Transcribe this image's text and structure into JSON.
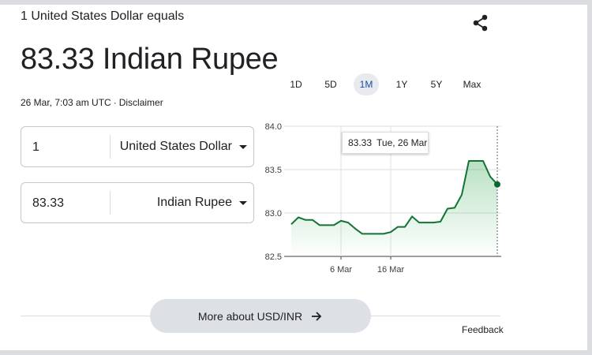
{
  "header": {
    "base_line": "1 United States Dollar equals",
    "share_icon": "share-icon"
  },
  "rate": {
    "display": "83.33 Indian Rupee"
  },
  "timestamp": {
    "time": "26 Mar, 7:03 am UTC",
    "separator": "·",
    "disclaimer": "Disclaimer"
  },
  "converter": {
    "from": {
      "amount": "1",
      "currency": "United States Dollar"
    },
    "to": {
      "amount": "83.33",
      "currency": "Indian Rupee"
    }
  },
  "range_tabs": [
    {
      "label": "1D",
      "active": false
    },
    {
      "label": "5D",
      "active": false
    },
    {
      "label": "1M",
      "active": true
    },
    {
      "label": "1Y",
      "active": false
    },
    {
      "label": "5Y",
      "active": false
    },
    {
      "label": "Max",
      "active": false
    }
  ],
  "tooltip": {
    "value": "83.33",
    "date": "Tue, 26 Mar"
  },
  "chart_data": {
    "type": "area",
    "title": "",
    "xlabel": "",
    "ylabel": "",
    "ylim": [
      82.5,
      84.0
    ],
    "y_ticks": [
      "84.0",
      "83.5",
      "83.0",
      "82.5"
    ],
    "x_tick_labels": [
      "6 Mar",
      "16 Mar"
    ],
    "series": [
      {
        "values": [
          82.87,
          82.95,
          82.92,
          82.92,
          82.86,
          82.86,
          82.86,
          82.91,
          82.89,
          82.82,
          82.76,
          82.76,
          82.76,
          82.76,
          82.78,
          82.84,
          82.84,
          82.96,
          82.89,
          82.89,
          82.89,
          82.9,
          83.05,
          83.06,
          83.21,
          83.6,
          83.6,
          83.6,
          83.42,
          83.33
        ]
      }
    ],
    "grid": true,
    "line_color": "#137333",
    "fill_color": "#34a853"
  },
  "more_button": {
    "label": "More about USD/INR",
    "icon": "arrow-right-icon"
  },
  "feedback": {
    "label": "Feedback"
  }
}
